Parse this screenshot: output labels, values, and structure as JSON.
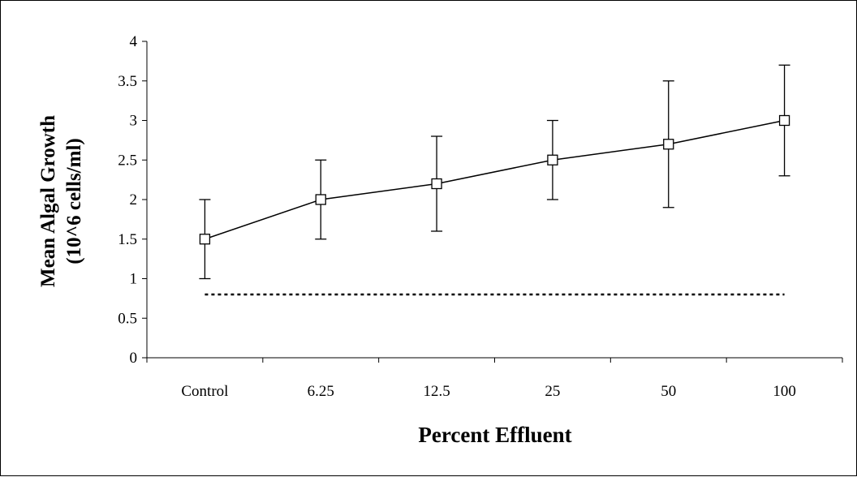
{
  "chart_data": {
    "type": "line",
    "title": "",
    "xlabel": "Percent Effluent",
    "ylabel_line1": "Mean Algal Growth",
    "ylabel_line2": "(10^6 cells/ml)",
    "categories": [
      "Control",
      "6.25",
      "12.5",
      "25",
      "50",
      "100"
    ],
    "series": [
      {
        "values": [
          1.5,
          2.0,
          2.2,
          2.5,
          2.7,
          3.0
        ],
        "error_low": [
          1.0,
          1.5,
          1.6,
          2.0,
          1.9,
          2.3
        ],
        "error_high": [
          2.0,
          2.5,
          2.8,
          3.0,
          3.5,
          3.7
        ],
        "marker": "open-square",
        "color": "#000000"
      }
    ],
    "reference_line": {
      "value": 0.8,
      "style": "dotted"
    },
    "ylim": [
      0,
      4
    ],
    "yticks": [
      "0",
      "0.5",
      "1",
      "1.5",
      "2",
      "2.5",
      "3",
      "3.5",
      "4"
    ],
    "ytick_values": [
      0,
      0.5,
      1,
      1.5,
      2,
      2.5,
      3,
      3.5,
      4
    ],
    "grid": false,
    "legend": "none"
  }
}
